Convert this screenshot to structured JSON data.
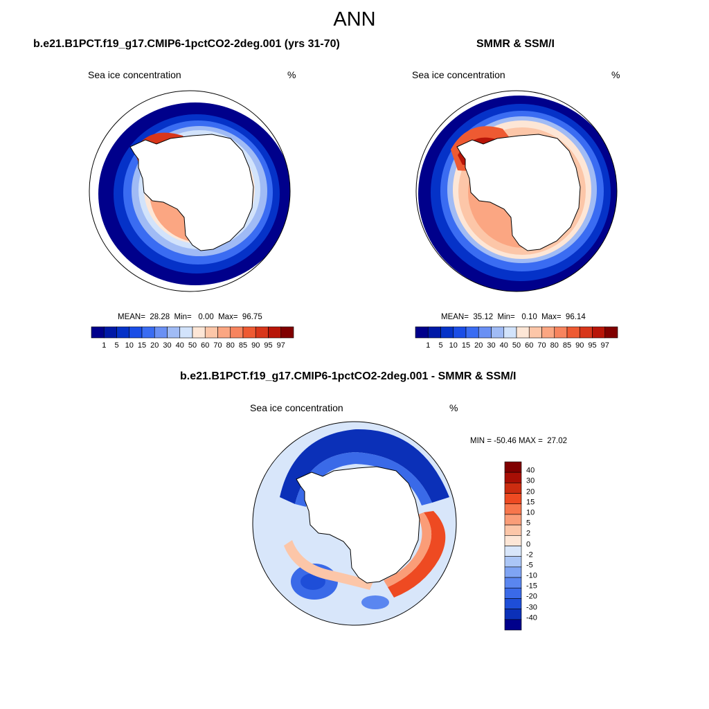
{
  "title": "ANN",
  "panels": [
    {
      "id": "model",
      "title": "b.e21.B1PCT.f19_g17.CMIP6-1pctCO2-2deg.001 (yrs 31-70)",
      "variable": "Sea ice concentration",
      "units": "%",
      "stats": "MEAN=  28.28  Min=   0.00  Max=  96.75"
    },
    {
      "id": "obs",
      "title": "SMMR & SSM/I",
      "variable": "Sea ice concentration",
      "units": "%",
      "stats": "MEAN=  35.12  Min=   0.10  Max=  96.14"
    },
    {
      "id": "diff",
      "title": "b.e21.B1PCT.f19_g17.CMIP6-1pctCO2-2deg.001 - SMMR & SSM/I",
      "variable": "Sea ice concentration",
      "units": "%",
      "stats": "MIN = -50.46 MAX =  27.02"
    }
  ],
  "colorbar_abs": {
    "labels": [
      "1",
      "5",
      "10",
      "15",
      "20",
      "30",
      "40",
      "50",
      "60",
      "70",
      "80",
      "85",
      "90",
      "95",
      "97"
    ],
    "colors": [
      "#00008b",
      "#0019a6",
      "#0532c8",
      "#1a4de6",
      "#3a6cf2",
      "#6a90f4",
      "#a0bbf5",
      "#d2e3fb",
      "#fde6d6",
      "#fcc6a8",
      "#fba682",
      "#f7845e",
      "#ee5a32",
      "#d8361a",
      "#b81508",
      "#800000"
    ]
  },
  "colorbar_diff": {
    "labels": [
      "40",
      "30",
      "20",
      "15",
      "10",
      "5",
      "2",
      "0",
      "-2",
      "-5",
      "-10",
      "-15",
      "-20",
      "-30",
      "-40"
    ],
    "colors": [
      "#800000",
      "#a80f05",
      "#cc2c10",
      "#ee4a22",
      "#f7764c",
      "#fa9d78",
      "#fcc6a8",
      "#fde6d6",
      "#d8e6fa",
      "#abc6f6",
      "#7fa4f3",
      "#5a86f0",
      "#3a6ae8",
      "#1e4ed8",
      "#0b30b8",
      "#00008b"
    ]
  }
}
